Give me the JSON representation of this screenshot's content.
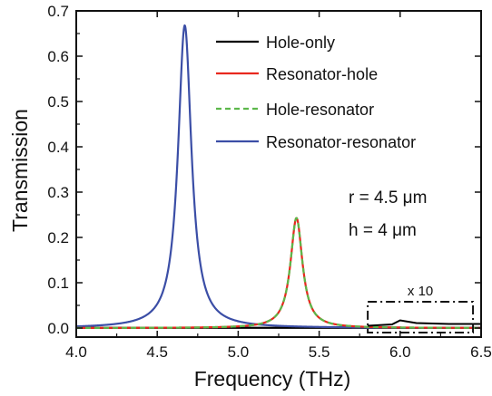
{
  "chart_data": {
    "type": "line",
    "xlabel": "Frequency (THz)",
    "ylabel": "Transmission",
    "xlim": [
      4.0,
      6.5
    ],
    "ylim": [
      -0.02,
      0.7
    ],
    "xticks": [
      4.0,
      4.5,
      5.0,
      5.5,
      6.0,
      6.5
    ],
    "xtick_labels": [
      "4.0",
      "4.5",
      "5.0",
      "5.5",
      "6.0",
      "6.5"
    ],
    "yticks": [
      0.0,
      0.1,
      0.2,
      0.3,
      0.4,
      0.5,
      0.6,
      0.7
    ],
    "ytick_labels": [
      "0.0",
      "0.1",
      "0.2",
      "0.3",
      "0.4",
      "0.5",
      "0.6",
      "0.7"
    ],
    "grid": false,
    "legend_position": "top-right",
    "series": [
      {
        "name": "Hole-only",
        "color": "#000000",
        "style": "solid",
        "model": "baseline",
        "level": 0.0005,
        "inset_magnified": {
          "factor": 10,
          "x_range": [
            5.8,
            6.5
          ],
          "values": [
            [
              5.8,
              0.0005
            ],
            [
              5.95,
              0.0008
            ],
            [
              6.0,
              0.0017
            ],
            [
              6.1,
              0.0011
            ],
            [
              6.3,
              0.0009
            ],
            [
              6.5,
              0.0009
            ]
          ]
        }
      },
      {
        "name": "Resonator-hole",
        "color": "#e8281e",
        "style": "solid",
        "model": "lorentzian",
        "peak_x": 5.36,
        "peak_y": 0.243,
        "hwhm": 0.045
      },
      {
        "name": "Hole-resonator",
        "color": "#5cb84a",
        "style": "dashed",
        "model": "lorentzian",
        "peak_x": 5.36,
        "peak_y": 0.243,
        "hwhm": 0.045
      },
      {
        "name": "Resonator-resonator",
        "color": "#3b4ea6",
        "style": "solid",
        "model": "lorentzian",
        "peak_x": 4.67,
        "peak_y": 0.668,
        "hwhm": 0.05
      }
    ],
    "annotations": [
      "r = 4.5 μm",
      "h = 4 μm"
    ],
    "inset_label": "x 10",
    "inset_box": {
      "x": [
        5.8,
        6.45
      ],
      "y": [
        -0.01,
        0.058
      ]
    }
  }
}
